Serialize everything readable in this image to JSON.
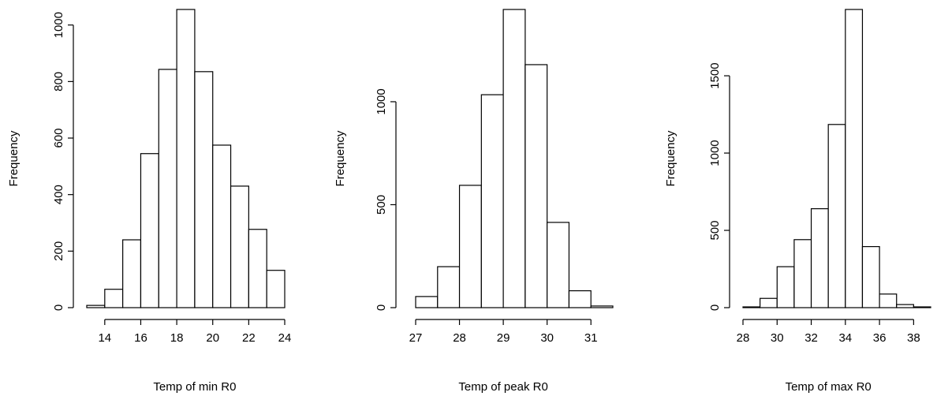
{
  "chart_data": [
    {
      "type": "histogram",
      "xlabel": "Temp of min R0",
      "ylabel": "Frequency",
      "color": "#ffffff",
      "bins": [
        13,
        14,
        15,
        16,
        17,
        18,
        19,
        20,
        21,
        22,
        23,
        24
      ],
      "values": [
        8,
        65,
        240,
        545,
        843,
        1055,
        835,
        575,
        430,
        277,
        132
      ],
      "xlim": [
        13,
        24
      ],
      "ylim": [
        0,
        1055
      ],
      "xticks": [
        14,
        16,
        18,
        20,
        22,
        24
      ],
      "yticks": [
        0,
        200,
        400,
        600,
        800,
        1000
      ]
    },
    {
      "type": "histogram",
      "xlabel": "Temp of peak R0",
      "ylabel": "Frequency",
      "color": "#ffffff",
      "bins": [
        27,
        27.5,
        28,
        28.5,
        29,
        29.5,
        30,
        30.5,
        31,
        31.5
      ],
      "values": [
        54,
        199,
        594,
        1034,
        1448,
        1180,
        414,
        82,
        8
      ],
      "xlim": [
        27,
        31.5
      ],
      "ylim": [
        0,
        1448
      ],
      "xticks": [
        27,
        28,
        29,
        30,
        31
      ],
      "yticks": [
        0,
        500,
        1000
      ]
    },
    {
      "type": "histogram",
      "xlabel": "Temp of max R0",
      "ylabel": "Frequency",
      "color": "#ffffff",
      "bins": [
        28,
        29,
        30,
        31,
        32,
        33,
        34,
        35,
        36,
        37,
        38,
        39
      ],
      "values": [
        5,
        60,
        265,
        440,
        640,
        1185,
        1929,
        395,
        88,
        20,
        5
      ],
      "xlim": [
        28,
        39
      ],
      "ylim": [
        0,
        1929
      ],
      "xticks": [
        28,
        30,
        32,
        34,
        36,
        38
      ],
      "yticks": [
        0,
        500,
        1000,
        1500
      ]
    }
  ]
}
